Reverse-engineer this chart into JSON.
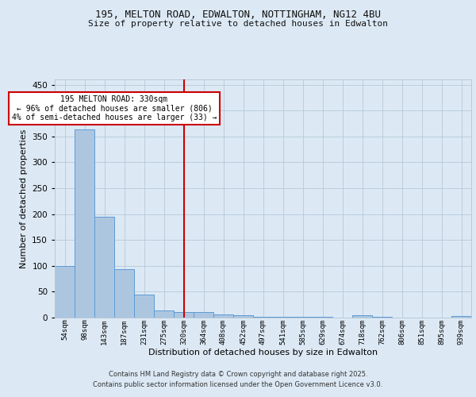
{
  "title_line1": "195, MELTON ROAD, EDWALTON, NOTTINGHAM, NG12 4BU",
  "title_line2": "Size of property relative to detached houses in Edwalton",
  "xlabel": "Distribution of detached houses by size in Edwalton",
  "ylabel": "Number of detached properties",
  "categories": [
    "54sqm",
    "98sqm",
    "143sqm",
    "187sqm",
    "231sqm",
    "275sqm",
    "320sqm",
    "364sqm",
    "408sqm",
    "452sqm",
    "497sqm",
    "541sqm",
    "585sqm",
    "629sqm",
    "674sqm",
    "718sqm",
    "762sqm",
    "806sqm",
    "851sqm",
    "895sqm",
    "939sqm"
  ],
  "values": [
    99,
    363,
    195,
    93,
    45,
    14,
    11,
    10,
    6,
    4,
    2,
    1,
    1,
    1,
    0,
    5,
    2,
    0,
    0,
    0,
    3
  ],
  "bar_color": "#adc6e0",
  "bar_edge_color": "#5b9bd5",
  "red_line_x": 6,
  "annotation_text": "195 MELTON ROAD: 330sqm\n← 96% of detached houses are smaller (806)\n4% of semi-detached houses are larger (33) →",
  "annotation_box_color": "#ffffff",
  "annotation_box_edge": "#cc0000",
  "background_color": "#dce9f5",
  "plot_bg_color": "#dce9f5",
  "footer_line1": "Contains HM Land Registry data © Crown copyright and database right 2025.",
  "footer_line2": "Contains public sector information licensed under the Open Government Licence v3.0.",
  "ylim": [
    0,
    460
  ],
  "yticks": [
    0,
    50,
    100,
    150,
    200,
    250,
    300,
    350,
    400,
    450
  ]
}
